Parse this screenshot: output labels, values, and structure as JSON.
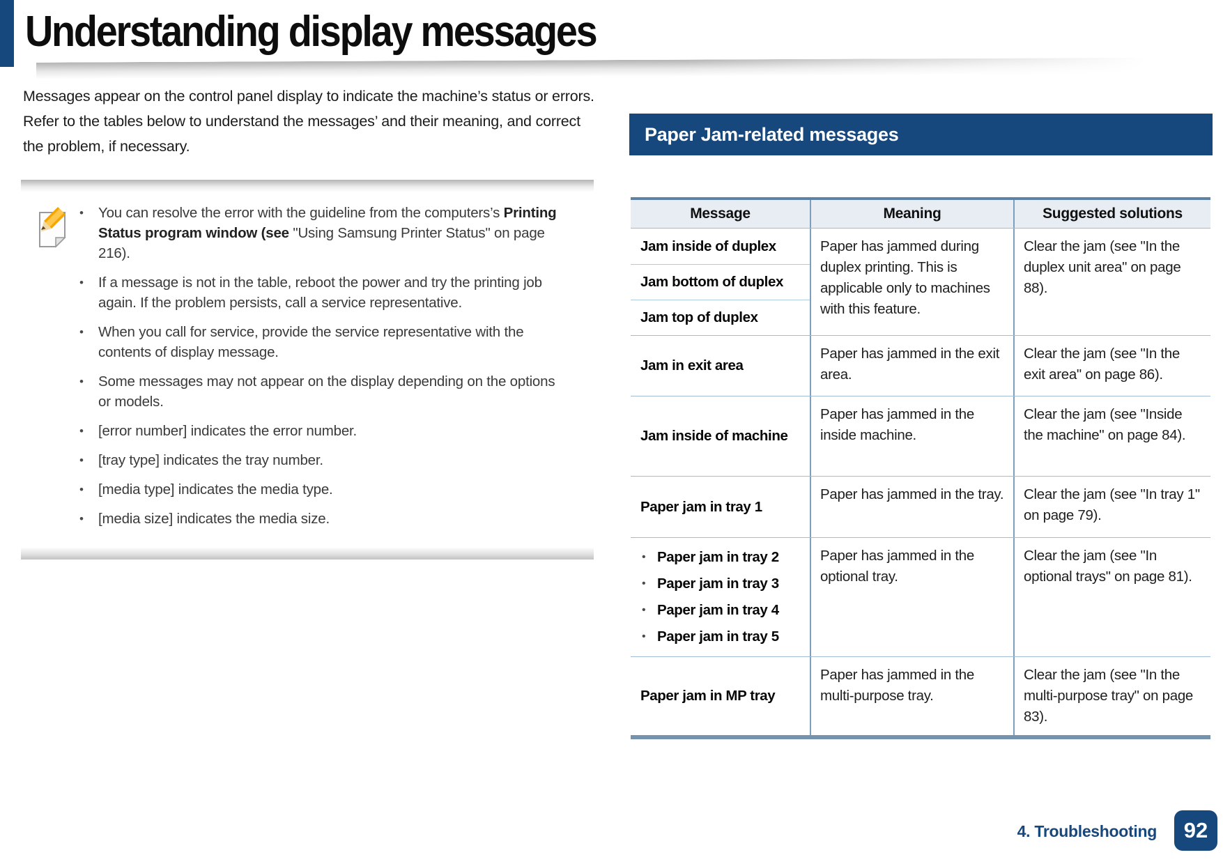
{
  "header": {
    "title": "Understanding display messages"
  },
  "intro": "Messages appear on the control panel display to indicate the machine’s status or errors. Refer to the tables below to understand the messages’ and their meaning, and correct the problem, if necessary.",
  "note": {
    "icon": "pencil-note-icon",
    "bullets": [
      {
        "segments": [
          {
            "text": "You can resolve the error with the guideline from the computers’s ",
            "bold": false
          },
          {
            "text": "Printing Status program window (see ",
            "bold": true
          },
          {
            "text": "\"Using Samsung Printer Status\" on page 216).",
            "bold": false
          }
        ]
      },
      {
        "segments": [
          {
            "text": "If a message is not in the table, reboot the power and try the printing job again. If the problem persists, call a service representative.",
            "bold": false
          }
        ]
      },
      {
        "segments": [
          {
            "text": "When you call for service, provide the service representative with the contents of display message.",
            "bold": false
          }
        ]
      },
      {
        "segments": [
          {
            "text": "Some messages may not appear on the display depending on the options or models.",
            "bold": false
          }
        ]
      },
      {
        "segments": [
          {
            "text": "[error number] indicates the error number.",
            "bold": false
          }
        ]
      },
      {
        "segments": [
          {
            "text": "[tray type] indicates the tray number.",
            "bold": false
          }
        ]
      },
      {
        "segments": [
          {
            "text": "[media type] indicates the media type.",
            "bold": false
          }
        ]
      },
      {
        "segments": [
          {
            "text": "[media size] indicates the media size.",
            "bold": false
          }
        ]
      }
    ]
  },
  "section": {
    "title": "Paper Jam-related messages"
  },
  "jam_table": {
    "headers": [
      "Message",
      "Meaning",
      "Suggested solutions"
    ],
    "rows": [
      {
        "style": "stacked",
        "messages": [
          "Jam inside of duplex",
          "Jam bottom of duplex",
          "Jam top of duplex"
        ],
        "meaning": "Paper has jammed during duplex printing. This is applicable only to machines with this feature.",
        "solution": "Clear the jam (see \"In the duplex unit area\" on page 88)."
      },
      {
        "style": "single",
        "messages": [
          "Jam in exit area"
        ],
        "meaning": "Paper has jammed in the exit area.",
        "solution": "Clear the jam (see \"In the exit area\" on page 86)."
      },
      {
        "style": "single",
        "messages": [
          "Jam inside of machine"
        ],
        "meaning": "Paper has jammed in the inside machine.",
        "solution": "Clear the jam (see \"Inside the machine\" on page 84)."
      },
      {
        "style": "single",
        "messages": [
          "Paper jam in tray 1"
        ],
        "meaning": "Paper has jammed in the tray.",
        "solution": "Clear the jam (see \"In tray 1\" on page 79)."
      },
      {
        "style": "bulleted",
        "messages": [
          "Paper jam in tray 2",
          "Paper jam in tray 3",
          "Paper jam in tray 4",
          "Paper jam in tray 5"
        ],
        "meaning": "Paper has jammed in the optional tray.",
        "solution": "Clear the jam (see \"In optional trays\" on page 81)."
      },
      {
        "style": "single",
        "messages": [
          "Paper jam in MP tray"
        ],
        "meaning": "Paper has jammed in the multi-purpose tray.",
        "solution": "Clear the jam (see \"In the multi-purpose tray\" on page 83)."
      }
    ]
  },
  "footer": {
    "chapter": "4. Troubleshooting",
    "page_number": "92"
  },
  "colors": {
    "navy": "#16477D",
    "table_top_border": "#5E82A3",
    "table_bottom_border": "#7593AC",
    "header_row_bg": "#E7EDF3",
    "cell_border": "#7C9FBE"
  }
}
